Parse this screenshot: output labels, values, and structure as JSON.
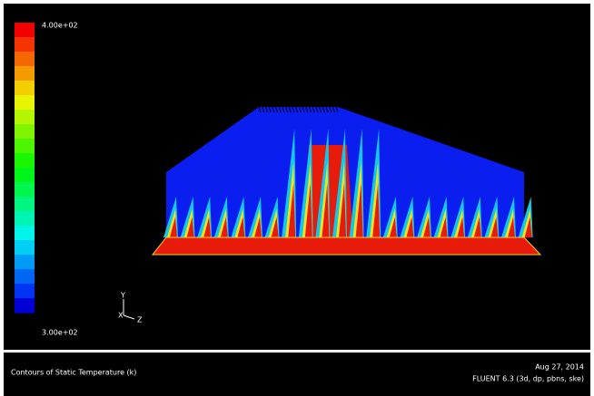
{
  "colorbar": {
    "max_label": "4.00e+02",
    "min_label": "3.00e+02"
  },
  "axes_triad": {
    "y": "Y",
    "x": "X",
    "z": "Z"
  },
  "footer": {
    "title": "Contours of Static Temperature (k)",
    "date": "Aug 27, 2014",
    "solver": "FLUENT 6.3 (3d, dp, pbns, ske)"
  }
}
